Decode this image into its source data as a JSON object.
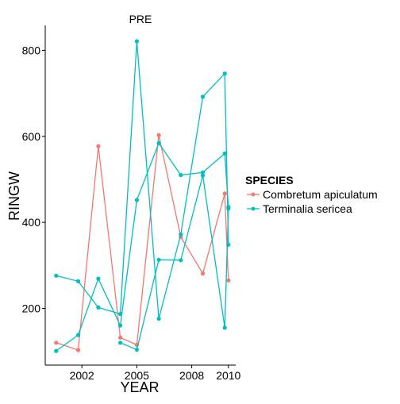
{
  "chart_data": {
    "type": "line",
    "panel_title": "PRE",
    "xlabel": "YEAR",
    "ylabel": "RINGW",
    "xlim": [
      2000.0,
      2010.4
    ],
    "ylim": [
      68,
      858
    ],
    "x_ticks": [
      2002,
      2005,
      2008,
      2010
    ],
    "x_tick_labels": [
      "2002",
      "2005",
      "2008",
      "2010"
    ],
    "y_ticks": [
      200,
      400,
      600,
      800
    ],
    "y_tick_labels": [
      "200",
      "400",
      "600",
      "800"
    ],
    "grid": false,
    "legend": {
      "title": "SPECIES",
      "placement": "right",
      "entries": [
        {
          "label": "Combretum apiculatum",
          "color": "#F8766D"
        },
        {
          "label": "Terminalia sericea",
          "color": "#00BFC4"
        }
      ]
    },
    "series": [
      {
        "name": "Combretum apiculatum",
        "color": "#F8766D",
        "x": [
          2000.6,
          2001.8,
          2002.9,
          2004.1,
          2005.0,
          2006.2,
          2007.4,
          2008.6,
          2009.8,
          2010.0
        ],
        "y": [
          120,
          103,
          577,
          132,
          115,
          603,
          366,
          281,
          467,
          265
        ]
      },
      {
        "name": "Terminalia sericea",
        "color": "#00BFC4",
        "x": [
          2000.6,
          2001.8,
          2002.9,
          2004.1,
          2005.0,
          2006.2,
          2007.4,
          2008.6,
          2009.8,
          2010.0
        ],
        "y": [
          101,
          138,
          269,
          160,
          452,
          584,
          510,
          516,
          560,
          436
        ]
      },
      {
        "name": "Terminalia sericea",
        "color": "#00BFC4",
        "x": [
          2000.6,
          2001.8,
          2002.9,
          2004.1,
          2005.0,
          2006.2,
          2007.4,
          2008.6,
          2009.8,
          2010.0
        ],
        "y": [
          276,
          263,
          202,
          187,
          821,
          176,
          372,
          692,
          746,
          348
        ]
      },
      {
        "name": "Terminalia sericea",
        "color": "#00BFC4",
        "x": [
          2004.1,
          2005.0,
          2006.2,
          2007.4,
          2008.6,
          2009.8,
          2010.0
        ],
        "y": [
          120,
          104,
          313,
          312,
          509,
          155,
          432
        ]
      }
    ]
  }
}
